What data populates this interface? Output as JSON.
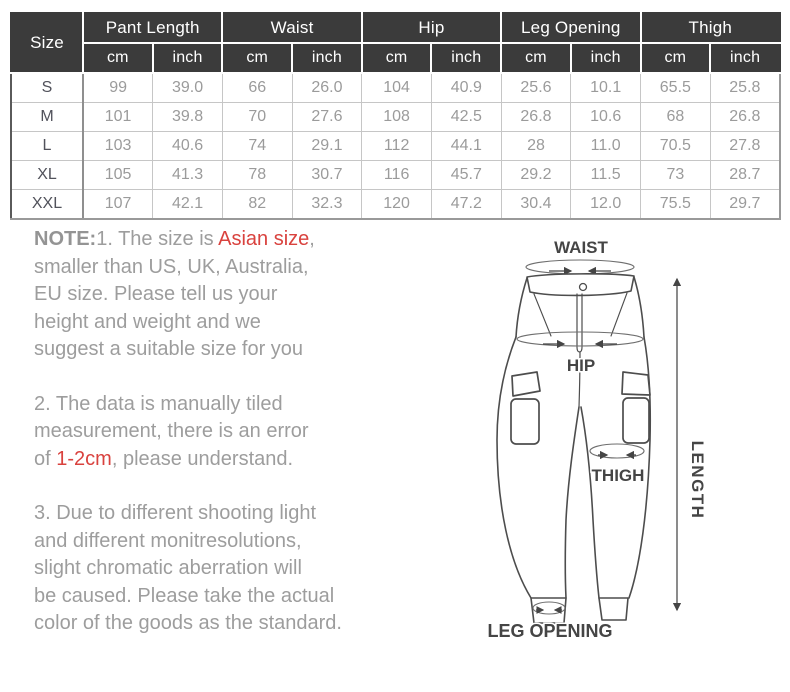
{
  "table": {
    "size_header": "Size",
    "unit_cm": "cm",
    "unit_inch": "inch",
    "groups": [
      {
        "label": "Pant Length"
      },
      {
        "label": "Waist"
      },
      {
        "label": "Hip"
      },
      {
        "label": "Leg Opening"
      },
      {
        "label": "Thigh"
      }
    ],
    "rows": [
      {
        "size": "S",
        "values": [
          "99",
          "39.0",
          "66",
          "26.0",
          "104",
          "40.9",
          "25.6",
          "10.1",
          "65.5",
          "25.8"
        ]
      },
      {
        "size": "M",
        "values": [
          "101",
          "39.8",
          "70",
          "27.6",
          "108",
          "42.5",
          "26.8",
          "10.6",
          "68",
          "26.8"
        ]
      },
      {
        "size": "L",
        "values": [
          "103",
          "40.6",
          "74",
          "29.1",
          "112",
          "44.1",
          "28",
          "11.0",
          "70.5",
          "27.8"
        ]
      },
      {
        "size": "XL",
        "values": [
          "105",
          "41.3",
          "78",
          "30.7",
          "116",
          "45.7",
          "29.2",
          "11.5",
          "73",
          "28.7"
        ]
      },
      {
        "size": "XXL",
        "values": [
          "107",
          "42.1",
          "82",
          "32.3",
          "120",
          "47.2",
          "30.4",
          "12.0",
          "75.5",
          "29.7"
        ]
      }
    ]
  },
  "note": {
    "paragraphs": [
      {
        "lines": [
          [
            {
              "text": "NOTE:",
              "bold": true
            },
            {
              "text": "1. The size is "
            },
            {
              "text": "Asian size",
              "red": true
            },
            {
              "text": ","
            }
          ],
          [
            {
              "text": "smaller than US, UK, Australia,"
            }
          ],
          [
            {
              "text": "EU size. Please tell us your"
            }
          ],
          [
            {
              "text": "height and weight and we"
            }
          ],
          [
            {
              "text": "suggest a suitable size for you"
            }
          ]
        ]
      },
      {
        "lines": [
          [
            {
              "text": "2. The data is manually tiled"
            }
          ],
          [
            {
              "text": "measurement, there is an error"
            }
          ],
          [
            {
              "text": "of "
            },
            {
              "text": "1-2cm",
              "red": true
            },
            {
              "text": ", please understand."
            }
          ]
        ]
      },
      {
        "lines": [
          [
            {
              "text": "3. Due to different shooting light"
            }
          ],
          [
            {
              "text": "and different monitresolutions,"
            }
          ],
          [
            {
              "text": "slight chromatic aberration will"
            }
          ],
          [
            {
              "text": "be caused. Please take the actual"
            }
          ],
          [
            {
              "text": "color of the goods as the standard."
            }
          ]
        ]
      }
    ]
  },
  "diagram": {
    "labels": {
      "waist": "WAIST",
      "hip": "HIP",
      "thigh": "THIGH",
      "length": "LENGTH",
      "leg_opening": "LEG OPENING"
    }
  },
  "colors": {
    "header_bg": "#3b3b3b",
    "header_text": "#ffffff",
    "value_text": "#9b9b9b",
    "size_text": "#51525b",
    "note_text": "#9d9d9d",
    "accent_red": "#d9423e",
    "line_art": "#4d4d4d"
  }
}
